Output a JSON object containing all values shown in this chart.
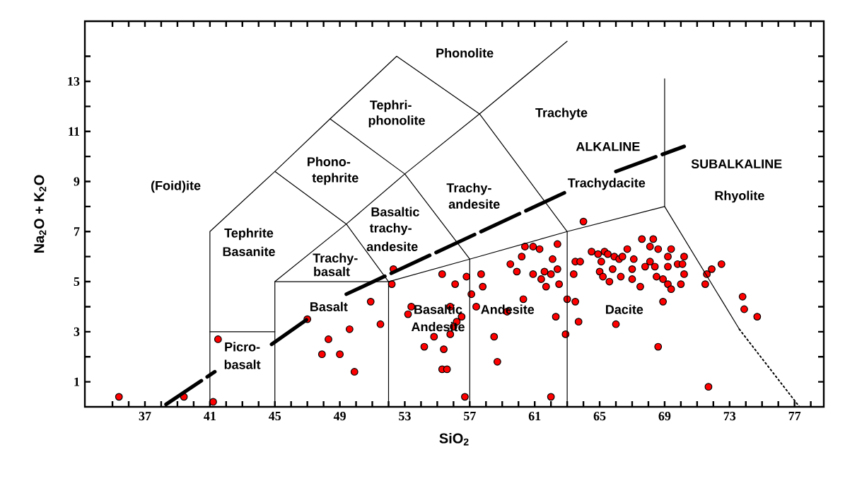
{
  "chart_data": {
    "type": "scatter",
    "xlabel": "SiO$_{2}$",
    "ylabel": "Na$_{2}$O + K$_{2}$O",
    "xlim": [
      33.3,
      78.8
    ],
    "ylim": [
      0,
      15.4
    ],
    "xticks": [
      {
        "value": 35,
        "label": null
      },
      {
        "value": 36,
        "label": null
      },
      37,
      {
        "value": 38,
        "label": null
      },
      {
        "value": 39,
        "label": null
      },
      {
        "value": 40,
        "label": null
      },
      41,
      {
        "value": 42,
        "label": null
      },
      {
        "value": 43,
        "label": null
      },
      {
        "value": 44,
        "label": null
      },
      45,
      {
        "value": 46,
        "label": null
      },
      {
        "value": 47,
        "label": null
      },
      {
        "value": 48,
        "label": null
      },
      49,
      {
        "value": 50,
        "label": null
      },
      {
        "value": 51,
        "label": null
      },
      {
        "value": 52,
        "label": null
      },
      53,
      {
        "value": 54,
        "label": null
      },
      {
        "value": 55,
        "label": null
      },
      {
        "value": 56,
        "label": null
      },
      57,
      {
        "value": 58,
        "label": null
      },
      {
        "value": 59,
        "label": null
      },
      {
        "value": 60,
        "label": null
      },
      61,
      {
        "value": 62,
        "label": null
      },
      {
        "value": 63,
        "label": null
      },
      {
        "value": 64,
        "label": null
      },
      65,
      {
        "value": 66,
        "label": null
      },
      {
        "value": 67,
        "label": null
      },
      {
        "value": 68,
        "label": null
      },
      69,
      {
        "value": 70,
        "label": null
      },
      {
        "value": 71,
        "label": null
      },
      {
        "value": 72,
        "label": null
      },
      73,
      {
        "value": 74,
        "label": null
      },
      {
        "value": 75,
        "label": null
      },
      {
        "value": 76,
        "label": null
      },
      77,
      {
        "value": 78,
        "label": null
      }
    ],
    "yticks": [
      1,
      {
        "value": 2,
        "label": null
      },
      3,
      {
        "value": 4,
        "label": null
      },
      5,
      {
        "value": 6,
        "label": null
      },
      7,
      {
        "value": 8,
        "label": null
      },
      9,
      {
        "value": 10,
        "label": null
      },
      11,
      {
        "value": 12,
        "label": null
      },
      13,
      {
        "value": 14,
        "label": null
      }
    ],
    "series": [
      {
        "marker": "circle",
        "color": "#ff0000",
        "x": [
          35.4,
          39.4,
          41.2,
          41.5,
          47.0,
          48.3,
          47.9,
          49.0,
          49.6,
          49.9,
          50.9,
          51.5,
          52.3,
          52.2,
          55.3,
          56.1,
          56.8,
          57.7,
          57.8,
          57.1,
          57.4,
          55.8,
          53.4,
          53.2,
          56.5,
          56.2,
          56.0,
          55.8,
          54.8,
          54.2,
          55.4,
          55.3,
          55.6,
          56.7,
          58.5,
          58.7,
          59.3,
          60.3,
          59.5,
          59.9,
          60.2,
          60.4,
          60.9,
          61.3,
          62.4,
          62.1,
          62.4,
          61.6,
          60.9,
          61.4,
          62.0,
          61.7,
          62.5,
          63.0,
          63.5,
          62.3,
          62.9,
          63.7,
          62.0,
          64.0,
          63.4,
          63.5,
          63.8,
          64.5,
          64.9,
          65.3,
          65.5,
          65.1,
          65.9,
          66.2,
          66.4,
          66.7,
          67.1,
          65.0,
          65.2,
          65.6,
          65.8,
          66.3,
          67.0,
          67.0,
          67.5,
          67.6,
          68.3,
          68.1,
          68.6,
          69.4,
          69.2,
          70.2,
          67.8,
          68.1,
          68.4,
          69.2,
          69.8,
          70.1,
          70.2,
          68.5,
          68.9,
          69.2,
          69.4,
          70.0,
          68.9,
          66.0,
          68.6,
          71.7,
          71.6,
          71.9,
          71.5,
          72.5,
          73.8,
          73.9,
          74.7
        ],
        "values": [
          0.4,
          0.4,
          0.2,
          2.7,
          3.5,
          2.7,
          2.1,
          2.1,
          3.1,
          1.4,
          4.2,
          3.3,
          5.5,
          4.9,
          5.3,
          4.9,
          5.2,
          5.3,
          4.8,
          4.5,
          4.0,
          4.0,
          4.0,
          3.7,
          3.6,
          3.4,
          3.2,
          2.9,
          2.8,
          2.4,
          2.3,
          1.5,
          1.5,
          0.4,
          2.8,
          1.8,
          3.8,
          4.3,
          5.7,
          5.4,
          6.0,
          6.4,
          6.4,
          6.3,
          6.5,
          5.9,
          5.5,
          5.4,
          5.3,
          5.1,
          5.3,
          4.8,
          4.9,
          4.3,
          4.2,
          3.6,
          2.9,
          3.4,
          0.4,
          7.4,
          5.3,
          5.8,
          5.8,
          6.2,
          6.1,
          6.2,
          6.1,
          5.8,
          6.0,
          5.9,
          6.0,
          6.3,
          5.9,
          5.4,
          5.2,
          5.0,
          5.5,
          5.2,
          5.5,
          5.1,
          4.8,
          6.7,
          6.7,
          6.4,
          6.3,
          6.3,
          6.0,
          6.0,
          5.6,
          5.8,
          5.6,
          5.6,
          5.7,
          5.7,
          5.3,
          5.2,
          5.1,
          4.9,
          4.7,
          4.9,
          4.2,
          3.3,
          2.4,
          0.8,
          5.3,
          5.5,
          4.9,
          5.7,
          4.4,
          3.9,
          3.6
        ]
      },
      {
        "type": "line",
        "marker": "none",
        "line_style": "solid",
        "color": "#000000",
        "x": [
          41,
          41,
          45,
          48.4,
          52.5
        ],
        "values": [
          0,
          7,
          9.4,
          11.5,
          14
        ]
      },
      {
        "type": "line",
        "marker": "none",
        "line_style": "solid",
        "color": "#000000",
        "x": [
          41,
          45
        ],
        "values": [
          3,
          3
        ]
      },
      {
        "type": "line",
        "marker": "none",
        "line_style": "solid",
        "color": "#000000",
        "x": [
          45,
          45,
          49.4,
          53,
          57.6,
          63
        ],
        "values": [
          0,
          5,
          7.3,
          9.3,
          11.7,
          14.6
        ]
      },
      {
        "type": "line",
        "marker": "none",
        "line_style": "solid",
        "color": "#000000",
        "x": [
          45,
          52,
          57,
          63,
          69,
          73.6
        ],
        "values": [
          5,
          5,
          5.9,
          7,
          8,
          3.1
        ]
      },
      {
        "type": "line",
        "marker": "none",
        "line_style": "dotted",
        "color": "#000000",
        "x": [
          73.6,
          77.3
        ],
        "values": [
          3.1,
          0
        ]
      },
      {
        "type": "line",
        "marker": "none",
        "line_style": "solid",
        "color": "#000000",
        "x": [
          69,
          69
        ],
        "values": [
          8,
          13.1
        ]
      },
      {
        "type": "line",
        "marker": "none",
        "line_style": "solid",
        "color": "#000000",
        "x": [
          52,
          52,
          49.4,
          45
        ],
        "values": [
          0,
          5,
          7.3,
          9.4
        ]
      },
      {
        "type": "line",
        "marker": "none",
        "line_style": "solid",
        "color": "#000000",
        "x": [
          57,
          57,
          53,
          48.4
        ],
        "values": [
          0,
          5.9,
          9.3,
          11.5
        ]
      },
      {
        "type": "line",
        "marker": "none",
        "line_style": "solid",
        "color": "#000000",
        "x": [
          63,
          63,
          57.6,
          52.5
        ],
        "values": [
          0,
          7,
          11.7,
          14
        ]
      },
      {
        "type": "line",
        "marker": "none",
        "line_style": "dashed",
        "color": "#000000",
        "x": [
          38.3,
          41.3,
          43,
          44.8,
          47.0,
          48.2,
          49.4,
          63.0,
          64.5,
          66.0,
          70.2
        ],
        "values": [
          0.1,
          1.4,
          null,
          2.5,
          3.5,
          null,
          4.5,
          8.6,
          null,
          9.4,
          10.4
        ]
      }
    ],
    "annotations": [
      "Phonolite",
      "Tephri-",
      "phonolite",
      "Trachyte",
      "ALKALINE",
      "SUBALKALINE",
      "Phono-",
      "tephrite",
      "(Foid)ite",
      "Trachy-",
      "andesite",
      "Trachydacite",
      "Rhyolite",
      "Basaltic",
      "trachy-",
      "andesite",
      "Tephrite",
      "Basanite",
      "Trachy-",
      "basalt",
      "Basalt",
      "Basaltic",
      "Andesite",
      "Andesite",
      "Dacite",
      "Picro-",
      "basalt"
    ]
  }
}
